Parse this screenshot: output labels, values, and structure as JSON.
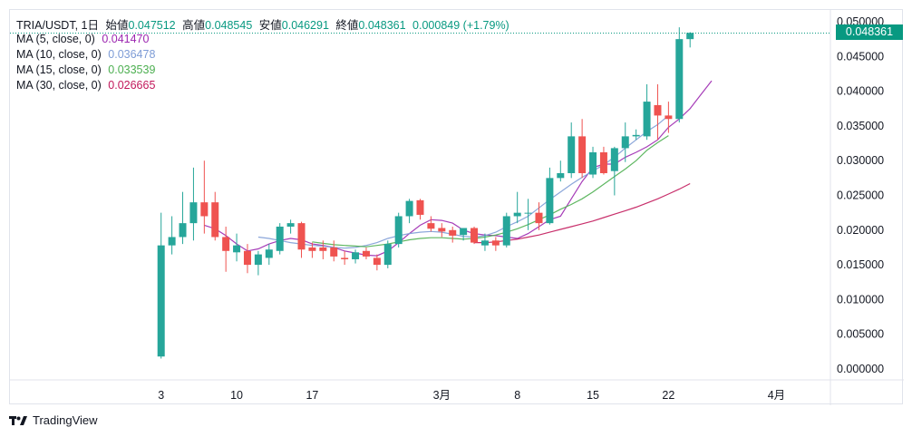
{
  "header": {
    "symbol": "TRIA/USDT, 1日",
    "open_label": "始値",
    "open": "0.047512",
    "high_label": "高値",
    "high": "0.048545",
    "low_label": "安値",
    "low": "0.046291",
    "close_label": "終値",
    "close": "0.048361",
    "change": "0.000849 (+1.79%)"
  },
  "mas": [
    {
      "label": "MA (5, close, 0)",
      "value": "0.041470",
      "color": "#9c27b0"
    },
    {
      "label": "MA (10, close, 0)",
      "value": "0.036478",
      "color": "#7e9cd6"
    },
    {
      "label": "MA (15, close, 0)",
      "value": "0.033539",
      "color": "#4caf50"
    },
    {
      "label": "MA (30, close, 0)",
      "value": "0.026665",
      "color": "#c2185b"
    }
  ],
  "last_price": "0.048361",
  "brand": "TradingView",
  "colors": {
    "up": "#26a69a",
    "down": "#ef5350",
    "axis_text": "#131722",
    "grid": "#f0f3fa"
  },
  "chart_data": {
    "type": "candlestick",
    "title": "TRIA/USDT, 1日",
    "y_ticks": [
      "0.050000",
      "0.045000",
      "0.040000",
      "0.035000",
      "0.030000",
      "0.025000",
      "0.020000",
      "0.015000",
      "0.010000",
      "0.005000",
      "0.000000"
    ],
    "ylim": [
      0,
      0.05
    ],
    "x_ticks": [
      {
        "label": "3",
        "index": 0
      },
      {
        "label": "10",
        "index": 7
      },
      {
        "label": "17",
        "index": 14
      },
      {
        "label": "3月",
        "index": 26
      },
      {
        "label": "8",
        "index": 33
      },
      {
        "label": "15",
        "index": 40
      },
      {
        "label": "22",
        "index": 47
      },
      {
        "label": "4月",
        "index": 57
      }
    ],
    "x_range": [
      -14,
      62
    ],
    "candles": [
      {
        "o": 0.0018,
        "h": 0.0225,
        "l": 0.0015,
        "c": 0.0178
      },
      {
        "o": 0.0178,
        "h": 0.022,
        "l": 0.0165,
        "c": 0.019
      },
      {
        "o": 0.019,
        "h": 0.0255,
        "l": 0.018,
        "c": 0.021
      },
      {
        "o": 0.021,
        "h": 0.029,
        "l": 0.0185,
        "c": 0.024
      },
      {
        "o": 0.024,
        "h": 0.03,
        "l": 0.0195,
        "c": 0.022
      },
      {
        "o": 0.024,
        "h": 0.0255,
        "l": 0.0185,
        "c": 0.019
      },
      {
        "o": 0.019,
        "h": 0.0205,
        "l": 0.014,
        "c": 0.017
      },
      {
        "o": 0.0168,
        "h": 0.0195,
        "l": 0.0155,
        "c": 0.0178
      },
      {
        "o": 0.017,
        "h": 0.018,
        "l": 0.0138,
        "c": 0.015
      },
      {
        "o": 0.015,
        "h": 0.017,
        "l": 0.0135,
        "c": 0.0165
      },
      {
        "o": 0.016,
        "h": 0.018,
        "l": 0.015,
        "c": 0.0172
      },
      {
        "o": 0.017,
        "h": 0.021,
        "l": 0.0165,
        "c": 0.0205
      },
      {
        "o": 0.0205,
        "h": 0.0215,
        "l": 0.0195,
        "c": 0.021
      },
      {
        "o": 0.021,
        "h": 0.0212,
        "l": 0.016,
        "c": 0.0172
      },
      {
        "o": 0.0175,
        "h": 0.0182,
        "l": 0.016,
        "c": 0.017
      },
      {
        "o": 0.0175,
        "h": 0.0185,
        "l": 0.0158,
        "c": 0.017
      },
      {
        "o": 0.0175,
        "h": 0.0185,
        "l": 0.0155,
        "c": 0.0162
      },
      {
        "o": 0.016,
        "h": 0.017,
        "l": 0.015,
        "c": 0.0158
      },
      {
        "o": 0.0158,
        "h": 0.0172,
        "l": 0.0152,
        "c": 0.0168
      },
      {
        "o": 0.017,
        "h": 0.0175,
        "l": 0.0158,
        "c": 0.0162
      },
      {
        "o": 0.016,
        "h": 0.0165,
        "l": 0.0142,
        "c": 0.015
      },
      {
        "o": 0.015,
        "h": 0.0185,
        "l": 0.0145,
        "c": 0.018
      },
      {
        "o": 0.018,
        "h": 0.0225,
        "l": 0.0175,
        "c": 0.022
      },
      {
        "o": 0.022,
        "h": 0.0245,
        "l": 0.021,
        "c": 0.0242
      },
      {
        "o": 0.0243,
        "h": 0.0245,
        "l": 0.0215,
        "c": 0.0222
      },
      {
        "o": 0.021,
        "h": 0.022,
        "l": 0.0198,
        "c": 0.0202
      },
      {
        "o": 0.0203,
        "h": 0.021,
        "l": 0.019,
        "c": 0.0198
      },
      {
        "o": 0.02,
        "h": 0.0205,
        "l": 0.0182,
        "c": 0.0192
      },
      {
        "o": 0.0193,
        "h": 0.0203,
        "l": 0.0185,
        "c": 0.0203
      },
      {
        "o": 0.0203,
        "h": 0.0205,
        "l": 0.018,
        "c": 0.0182
      },
      {
        "o": 0.0178,
        "h": 0.0195,
        "l": 0.017,
        "c": 0.0185
      },
      {
        "o": 0.0185,
        "h": 0.019,
        "l": 0.017,
        "c": 0.0178
      },
      {
        "o": 0.0178,
        "h": 0.0225,
        "l": 0.0175,
        "c": 0.022
      },
      {
        "o": 0.022,
        "h": 0.0255,
        "l": 0.021,
        "c": 0.0225
      },
      {
        "o": 0.0225,
        "h": 0.0245,
        "l": 0.02,
        "c": 0.0225
      },
      {
        "o": 0.0225,
        "h": 0.024,
        "l": 0.02,
        "c": 0.021
      },
      {
        "o": 0.021,
        "h": 0.029,
        "l": 0.0208,
        "c": 0.0275
      },
      {
        "o": 0.0275,
        "h": 0.03,
        "l": 0.027,
        "c": 0.0282
      },
      {
        "o": 0.0282,
        "h": 0.0355,
        "l": 0.0275,
        "c": 0.0335
      },
      {
        "o": 0.0335,
        "h": 0.036,
        "l": 0.0275,
        "c": 0.0282
      },
      {
        "o": 0.028,
        "h": 0.032,
        "l": 0.0275,
        "c": 0.0312
      },
      {
        "o": 0.0312,
        "h": 0.032,
        "l": 0.028,
        "c": 0.0282
      },
      {
        "o": 0.0285,
        "h": 0.032,
        "l": 0.025,
        "c": 0.0318
      },
      {
        "o": 0.0318,
        "h": 0.0355,
        "l": 0.0298,
        "c": 0.0335
      },
      {
        "o": 0.0335,
        "h": 0.0345,
        "l": 0.033,
        "c": 0.0337
      },
      {
        "o": 0.0335,
        "h": 0.041,
        "l": 0.033,
        "c": 0.0385
      },
      {
        "o": 0.038,
        "h": 0.041,
        "l": 0.033,
        "c": 0.0365
      },
      {
        "o": 0.0365,
        "h": 0.0385,
        "l": 0.034,
        "c": 0.036
      },
      {
        "o": 0.036,
        "h": 0.0492,
        "l": 0.0355,
        "c": 0.0475
      },
      {
        "o": 0.0475,
        "h": 0.0485,
        "l": 0.0463,
        "c": 0.0484
      }
    ],
    "ma_lines": [
      {
        "name": "MA 5",
        "color": "#9c27b0",
        "start": 4,
        "values": [
          0.0207,
          0.0202,
          0.0192,
          0.018,
          0.017,
          0.0173,
          0.018,
          0.0185,
          0.0188,
          0.0186,
          0.018,
          0.0178,
          0.0175,
          0.017,
          0.0167,
          0.0164,
          0.0163,
          0.017,
          0.0182,
          0.0195,
          0.0207,
          0.0215,
          0.0214,
          0.021,
          0.02,
          0.0195,
          0.0193,
          0.0192,
          0.019,
          0.0188,
          0.0195,
          0.0205,
          0.0215,
          0.022,
          0.0245,
          0.027,
          0.029,
          0.0295,
          0.0295,
          0.0305,
          0.0312,
          0.032,
          0.033,
          0.0348,
          0.036,
          0.0375,
          0.0395,
          0.0415
        ]
      },
      {
        "name": "MA 10",
        "color": "#7e9cd6",
        "start": 9,
        "values": [
          0.019,
          0.0188,
          0.0185,
          0.0182,
          0.018,
          0.0178,
          0.0177,
          0.0175,
          0.0174,
          0.0175,
          0.0178,
          0.0182,
          0.0188,
          0.0192,
          0.0195,
          0.0197,
          0.0198,
          0.0197,
          0.0194,
          0.0191,
          0.019,
          0.0192,
          0.0197,
          0.0205,
          0.0212,
          0.022,
          0.0232,
          0.0244,
          0.0255,
          0.0266,
          0.0276,
          0.0285,
          0.0294,
          0.0305,
          0.0318,
          0.033,
          0.0342,
          0.0352,
          0.0365
        ]
      },
      {
        "name": "MA 15",
        "color": "#4caf50",
        "start": 14,
        "values": [
          0.0183,
          0.0181,
          0.0179,
          0.0178,
          0.0177,
          0.0176,
          0.0178,
          0.018,
          0.0183,
          0.0186,
          0.0188,
          0.0189,
          0.0189,
          0.0188,
          0.0187,
          0.0188,
          0.019,
          0.0193,
          0.0197,
          0.0202,
          0.0208,
          0.0215,
          0.0222,
          0.023,
          0.0237,
          0.0245,
          0.0255,
          0.0266,
          0.0277,
          0.0288,
          0.03,
          0.0315,
          0.0326,
          0.0336
        ]
      },
      {
        "name": "MA 30",
        "color": "#c2185b",
        "start": 29,
        "values": [
          0.0182,
          0.0182,
          0.0183,
          0.0185,
          0.0187,
          0.019,
          0.0193,
          0.0197,
          0.0201,
          0.0205,
          0.0209,
          0.0213,
          0.0218,
          0.0223,
          0.0228,
          0.0233,
          0.0239,
          0.0245,
          0.0252,
          0.0259,
          0.0267
        ]
      }
    ]
  }
}
